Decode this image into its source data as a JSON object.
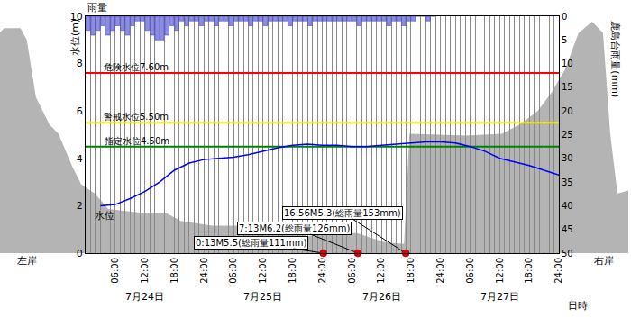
{
  "chart_data": {
    "type": "line",
    "x_label": "日時",
    "y_label": "水位(m)",
    "y2_label": "鹿島台雨量(mm)",
    "xlim": [
      0,
      96
    ],
    "xticks": [
      {
        "value": 6,
        "label": "06:00"
      },
      {
        "value": 12,
        "label": "12:00"
      },
      {
        "value": 18,
        "label": "18:00"
      },
      {
        "value": 24,
        "label": "24:00"
      },
      {
        "value": 30,
        "label": "06:00"
      },
      {
        "value": 36,
        "label": "12:00"
      },
      {
        "value": 42,
        "label": "18:00"
      },
      {
        "value": 48,
        "label": "24:00"
      },
      {
        "value": 54,
        "label": "06:00"
      },
      {
        "value": 60,
        "label": "12:00"
      },
      {
        "value": 66,
        "label": "18:00"
      },
      {
        "value": 72,
        "label": "24:00"
      },
      {
        "value": 78,
        "label": "06:00"
      },
      {
        "value": 84,
        "label": "12:00"
      },
      {
        "value": 90,
        "label": "18:00"
      },
      {
        "value": 96,
        "label": "24:00"
      }
    ],
    "date_labels": [
      {
        "value": 12,
        "label": "7月24日"
      },
      {
        "value": 36,
        "label": "7月25日"
      },
      {
        "value": 60,
        "label": "7月26日"
      },
      {
        "value": 84,
        "label": "7月27日"
      }
    ],
    "ylim": [
      0,
      10
    ],
    "yticks": [
      0,
      2,
      4,
      6,
      8,
      10
    ],
    "y2lim": [
      50,
      0
    ],
    "y2ticks": [
      0,
      5,
      10,
      15,
      20,
      25,
      30,
      35,
      40,
      45,
      50
    ],
    "grid": true,
    "series": [
      {
        "name": "水位",
        "type": "line",
        "color": "#0000ff",
        "x": [
          3,
          6,
          9,
          12,
          15,
          18,
          21,
          24,
          27,
          30,
          33,
          36,
          39,
          42,
          45,
          48,
          51,
          54,
          57,
          60,
          63,
          66,
          69,
          72,
          75,
          78,
          81,
          84,
          87,
          90,
          93,
          96
        ],
        "values": [
          2.0,
          2.05,
          2.3,
          2.6,
          3.0,
          3.5,
          3.8,
          3.95,
          4.0,
          4.05,
          4.15,
          4.3,
          4.45,
          4.55,
          4.6,
          4.55,
          4.55,
          4.5,
          4.5,
          4.55,
          4.6,
          4.65,
          4.7,
          4.7,
          4.65,
          4.5,
          4.3,
          4.0,
          3.85,
          3.7,
          3.5,
          3.3
        ]
      },
      {
        "name": "雨量",
        "type": "bar",
        "axis": "y2",
        "color": "#8c8ce6",
        "x": [
          0.5,
          1.5,
          2.5,
          3.5,
          4.5,
          5.5,
          6.5,
          7.5,
          8.5,
          9.5,
          10.5,
          11.5,
          12.5,
          13.5,
          14.5,
          15.5,
          16.5,
          17.5,
          18.5,
          19.5,
          20.5,
          21.5,
          22.5,
          23.5,
          24.5,
          25.5,
          26.5,
          27.5,
          28.5,
          29.5,
          30.5,
          31.5,
          32.5,
          33.5,
          34.5,
          35.5,
          36.5,
          37.5,
          38.5,
          39.5,
          40.5,
          41.5,
          42.5,
          43.5,
          44.5,
          45.5,
          46.5,
          47.5,
          48.5,
          49.5,
          50.5,
          51.5,
          52.5,
          53.5,
          54.5,
          55.5,
          56.5,
          57.5,
          58.5,
          59.5,
          60.5,
          61.5,
          62.5,
          63.5,
          64.5,
          65.5,
          66.5,
          67.5,
          68.5,
          69.5,
          70.5
        ],
        "values": [
          3,
          4,
          3,
          2,
          4,
          3,
          2,
          3,
          4,
          2,
          1,
          1,
          3,
          4,
          5,
          5,
          4,
          2,
          3,
          1,
          2,
          1,
          1,
          2,
          1,
          1,
          2,
          1,
          1,
          2,
          1,
          1,
          1,
          2,
          1,
          1,
          2,
          1,
          1,
          1,
          1,
          2,
          1,
          1,
          1,
          2,
          1,
          1,
          1,
          1,
          1,
          1,
          1,
          1,
          1,
          2,
          1,
          1,
          1,
          1,
          1,
          2,
          1,
          1,
          2,
          1,
          1,
          0,
          0,
          1,
          0
        ]
      }
    ],
    "thresholds": [
      {
        "label": "危険水位7.60m",
        "value": 7.6,
        "color": "#ff0000"
      },
      {
        "label": "警戒水位5.50m",
        "value": 5.5,
        "color": "#f0f000"
      },
      {
        "label": "指定水位4.50m",
        "value": 4.5,
        "color": "#008000"
      }
    ],
    "events": {
      "color": "#e00000",
      "marker": "circle",
      "points": [
        {
          "x": 48.22,
          "value": 0,
          "label": "0:13M5.5(総雨量111mm)"
        },
        {
          "x": 55.22,
          "value": 0,
          "label": "7:13M6.2(総雨量126mm)"
        },
        {
          "x": 64.93,
          "value": 0,
          "label": "16:56M5.3(総雨量153mm)"
        }
      ]
    },
    "cross_section": {
      "color": "#b4b4b4",
      "x": [
        -18.35,
        -16.51,
        -13.21,
        -11.93,
        -10.09,
        -7.34,
        -5.5,
        -2.75,
        -0.92,
        1.83,
        4.59,
        11.01,
        16.51,
        19.27,
        25.69,
        33.03,
        42.2,
        44.95,
        47.71,
        55.05,
        60.55,
        64.59,
        65.69,
        77.06,
        84.4,
        88.07,
        91.74,
        94.5,
        97.25,
        100.0,
        102.75,
        104.95,
        106.42,
        107.89,
        110.09
      ],
      "values": [
        9.11,
        9.5,
        9.5,
        8.99,
        6.59,
        5.43,
        5.04,
        3.68,
        2.91,
        2.52,
        1.86,
        1.71,
        1.67,
        1.36,
        1.16,
        1.16,
        1.09,
        0.7,
        0.85,
        0.85,
        0.47,
        0.39,
        5.04,
        4.96,
        5.04,
        5.43,
        6.01,
        6.78,
        7.75,
        9.3,
        9.77,
        9.3,
        5.04,
        2.52,
        2.64
      ]
    },
    "bank_labels": {
      "left": "左岸",
      "right": "右岸"
    }
  }
}
